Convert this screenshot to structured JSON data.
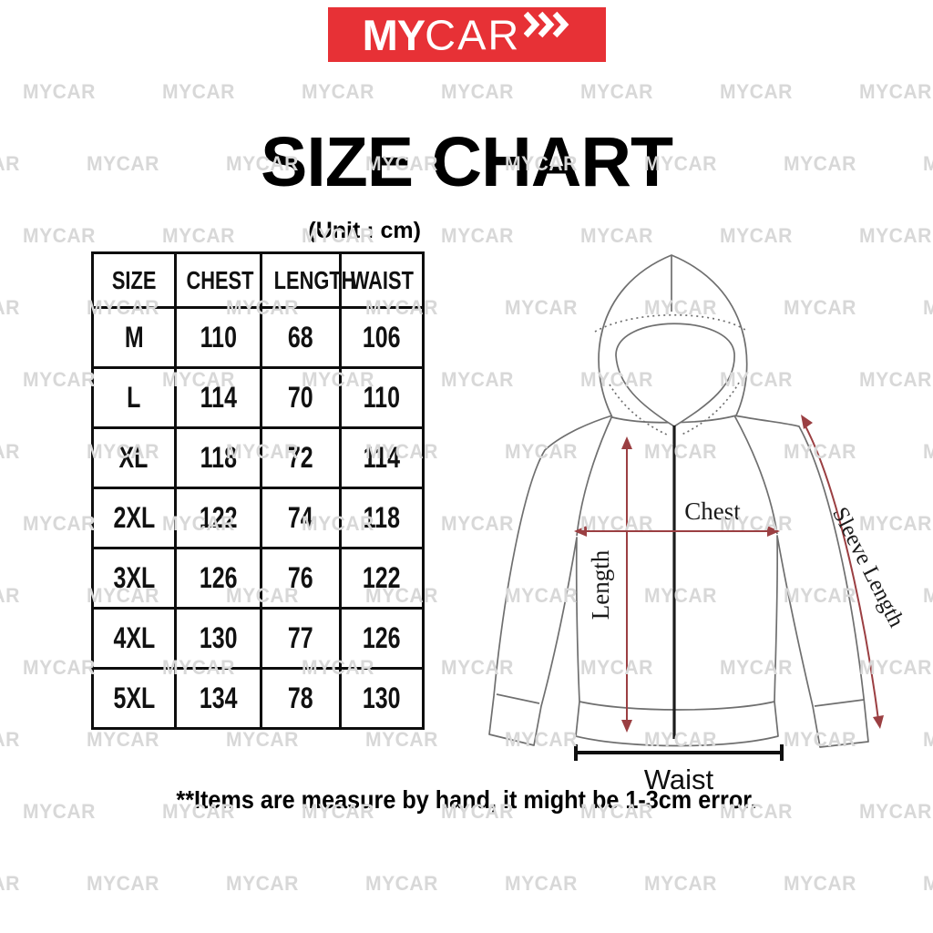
{
  "logo": {
    "brand_bold": "MY",
    "brand_light": "CAR",
    "chevrons_icon": "triple-right-chevron",
    "bg_color": "#e73136",
    "text_color": "#ffffff"
  },
  "watermark": {
    "text": "MYCAR"
  },
  "title": "SIZE CHART",
  "unit_label": "(Unit : cm)",
  "chart_data": {
    "type": "table",
    "title": "SIZE CHART",
    "unit": "cm",
    "columns": [
      "SIZE",
      "CHEST",
      "LENGTH",
      "WAIST"
    ],
    "rows": [
      [
        "M",
        "110",
        "68",
        "106"
      ],
      [
        "L",
        "114",
        "70",
        "110"
      ],
      [
        "XL",
        "118",
        "72",
        "114"
      ],
      [
        "2XL",
        "122",
        "74",
        "118"
      ],
      [
        "3XL",
        "126",
        "76",
        "122"
      ],
      [
        "4XL",
        "130",
        "77",
        "126"
      ],
      [
        "5XL",
        "134",
        "78",
        "130"
      ]
    ]
  },
  "diagram": {
    "labels": {
      "chest": "Chest",
      "length": "Length",
      "sleeve_length": "Sleeve Length",
      "waist": "Waist"
    },
    "arrow_color": "#9b3f42",
    "outline_color": "#6f6f6f"
  },
  "footnote": "**Items are measure by hand, it might be 1-3cm error."
}
